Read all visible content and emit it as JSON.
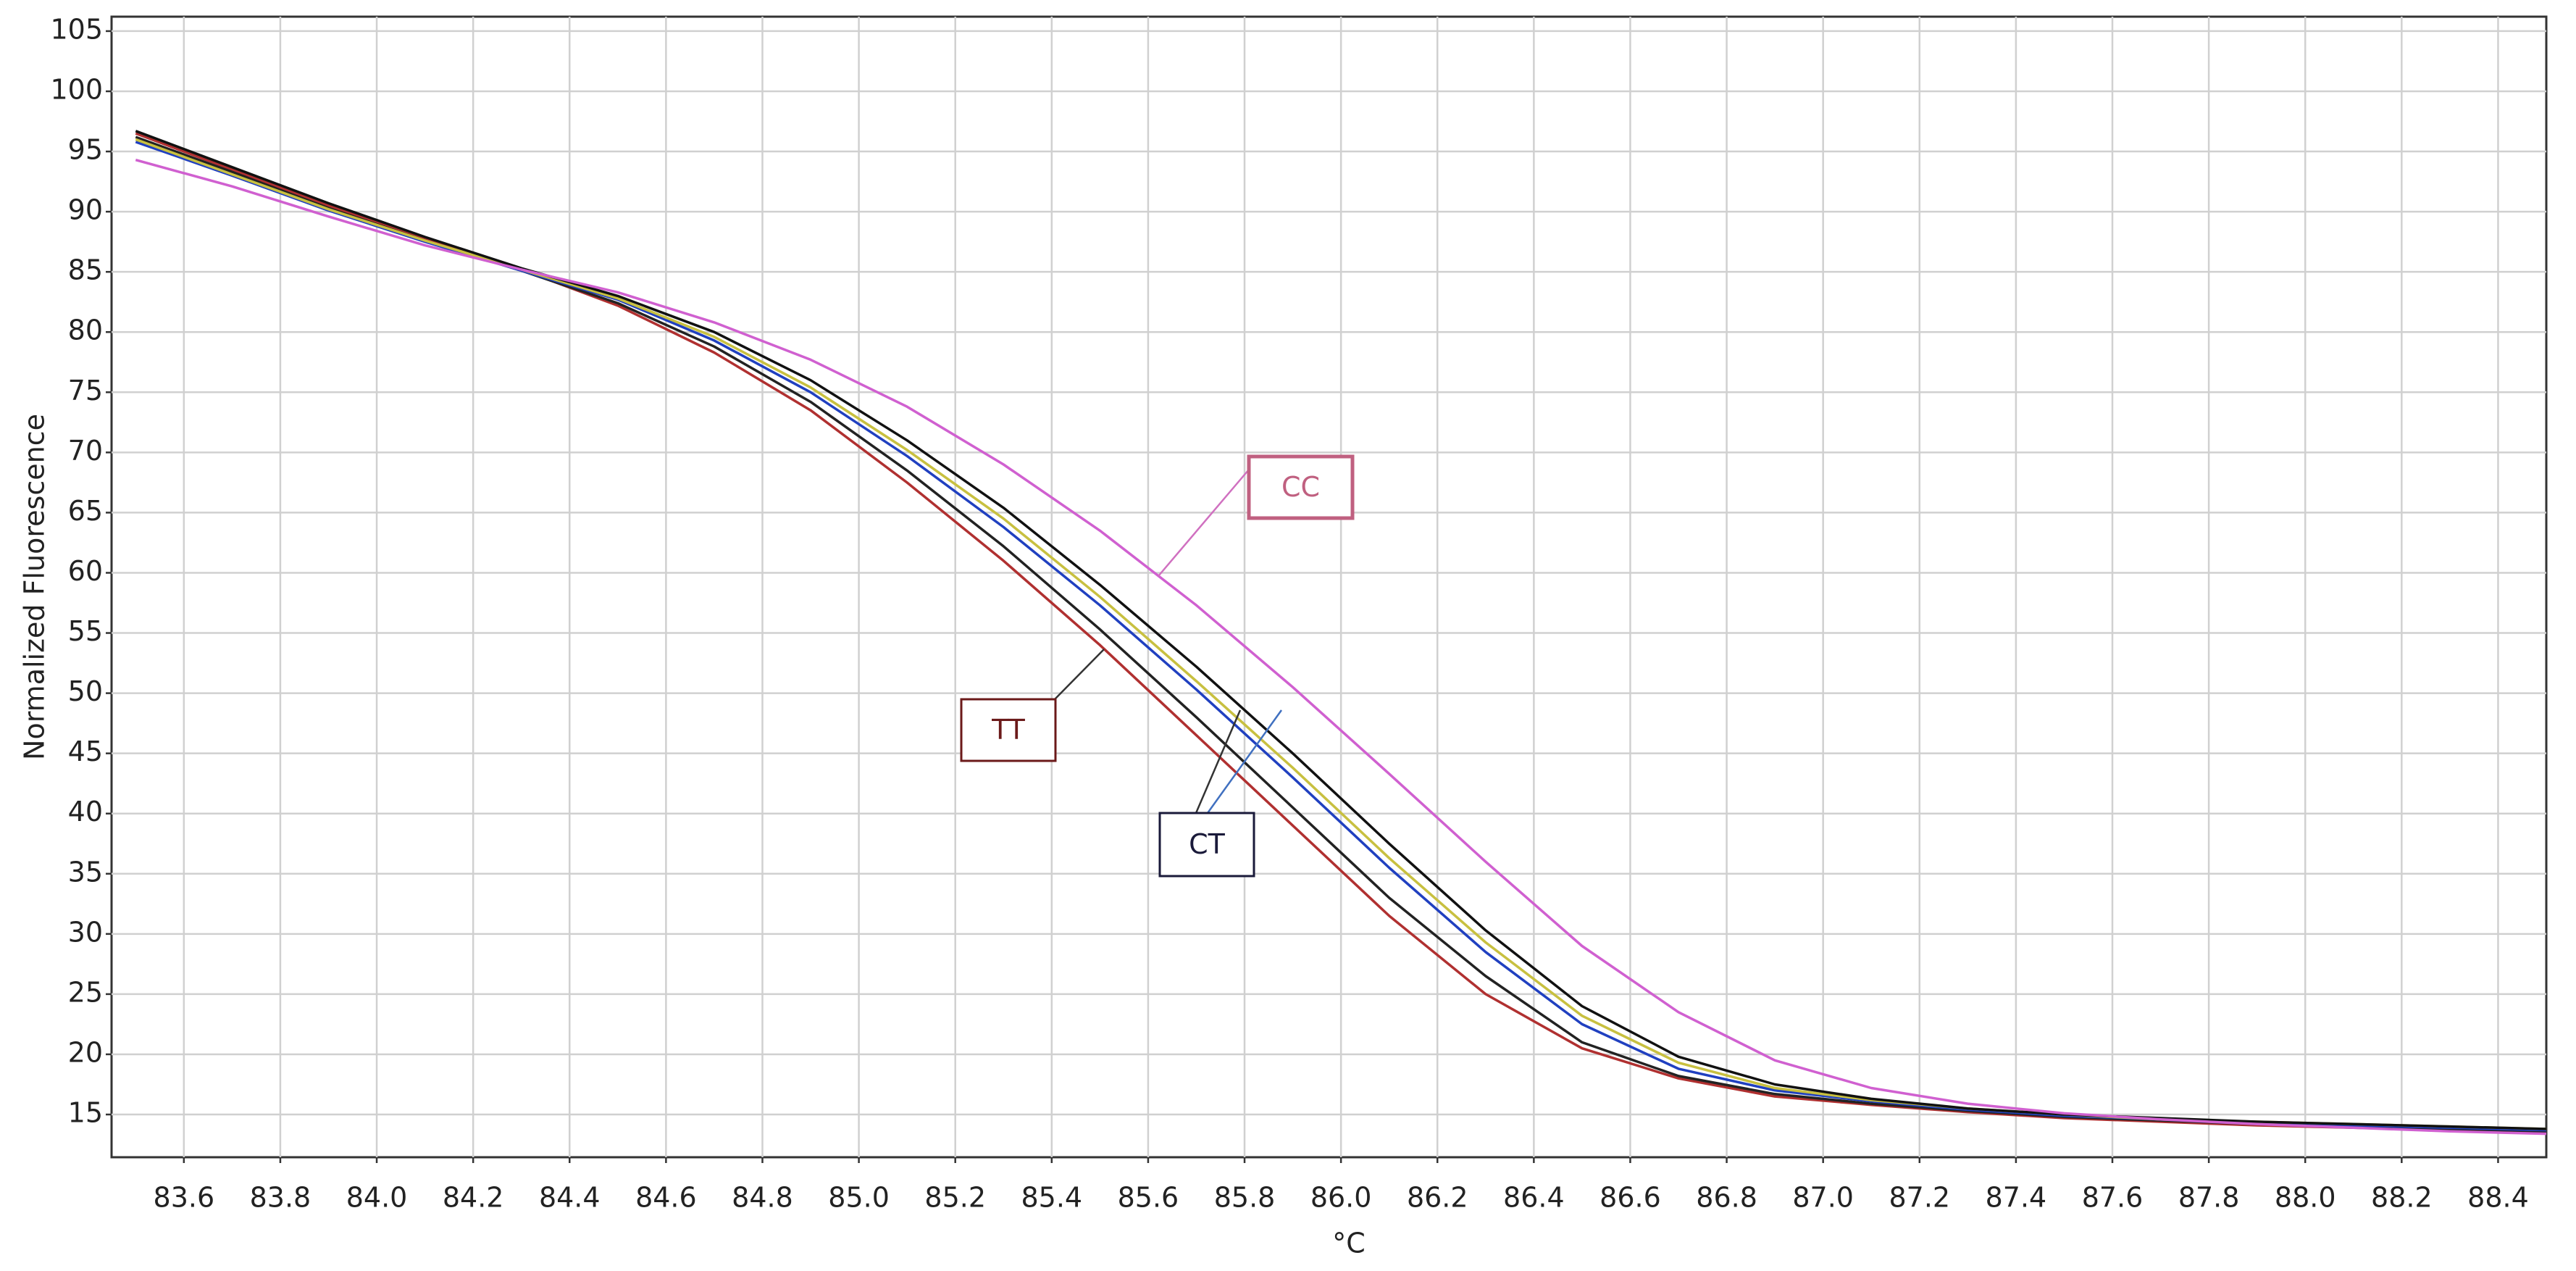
{
  "chart_data": {
    "type": "line",
    "xlabel": "°C",
    "ylabel": "Normalized Fluorescence",
    "x": [
      83.5,
      83.7,
      83.9,
      84.1,
      84.3,
      84.5,
      84.7,
      84.9,
      85.1,
      85.3,
      85.5,
      85.7,
      85.9,
      86.1,
      86.3,
      86.5,
      86.7,
      86.9,
      87.1,
      87.3,
      87.5,
      87.7,
      87.9,
      88.1,
      88.3,
      88.5
    ],
    "series": [
      {
        "color": "#b03030",
        "values": [
          96.5,
          93.5,
          90.5,
          87.7,
          85.2,
          82.2,
          78.3,
          73.5,
          67.5,
          61,
          54,
          46.5,
          39,
          31.5,
          25,
          20.5,
          18,
          16.5,
          15.8,
          15.2,
          14.7,
          14.4,
          14.1,
          13.9,
          13.7,
          13.5
        ]
      },
      {
        "color": "#222222",
        "values": [
          96.2,
          93.3,
          90.3,
          87.6,
          85.1,
          82.4,
          78.8,
          74.2,
          68.5,
          62.2,
          55.3,
          48,
          40.5,
          33,
          26.5,
          21,
          18.2,
          16.7,
          15.9,
          15.3,
          14.8,
          14.5,
          14.2,
          14,
          13.8,
          13.6
        ]
      },
      {
        "color": "#2040c0",
        "values": [
          95.8,
          93,
          90.1,
          87.5,
          85.1,
          82.7,
          79.3,
          75,
          69.7,
          63.8,
          57.3,
          50.3,
          43,
          35.5,
          28.5,
          22.5,
          18.8,
          17,
          16.1,
          15.4,
          14.9,
          14.6,
          14.3,
          14.1,
          13.9,
          13.7
        ]
      },
      {
        "color": "#c8c040",
        "values": [
          96,
          93.1,
          90.2,
          87.6,
          85.2,
          82.8,
          79.6,
          75.4,
          70.2,
          64.5,
          58,
          51,
          43.8,
          36.3,
          29.3,
          23.2,
          19.3,
          17.2,
          16.2,
          15.5,
          15,
          14.6,
          14.4,
          14.2,
          14,
          13.8
        ]
      },
      {
        "color": "#111111",
        "values": [
          96.7,
          93.7,
          90.7,
          87.9,
          85.3,
          83,
          80,
          76,
          71,
          65.4,
          59,
          52.2,
          45,
          37.5,
          30.3,
          24,
          19.8,
          17.5,
          16.3,
          15.5,
          15,
          14.7,
          14.4,
          14.2,
          14,
          13.8
        ]
      },
      {
        "color": "#d060d0",
        "values": [
          94.3,
          92.1,
          89.6,
          87.2,
          85.2,
          83.3,
          80.8,
          77.7,
          73.8,
          69,
          63.5,
          57.3,
          50.5,
          43.3,
          36,
          29,
          23.5,
          19.5,
          17.2,
          15.9,
          15.1,
          14.6,
          14.2,
          13.9,
          13.6,
          13.4
        ]
      }
    ],
    "xlim": [
      83.45,
      88.5
    ],
    "ylim": [
      11.45,
      106.2
    ],
    "xticks": [
      83.6,
      83.8,
      {
        "value": 84,
        "label": "84.0"
      },
      84.2,
      84.4,
      84.6,
      84.8,
      {
        "value": 85,
        "label": "85.0"
      },
      85.2,
      85.4,
      85.6,
      85.8,
      {
        "value": 86,
        "label": "86.0"
      },
      86.2,
      86.4,
      86.6,
      86.8,
      {
        "value": 87,
        "label": "87.0"
      },
      87.2,
      87.4,
      87.6,
      87.8,
      {
        "value": 88,
        "label": "88.0"
      },
      88.2,
      88.4
    ],
    "yticks": [
      15,
      20,
      25,
      30,
      35,
      40,
      45,
      50,
      55,
      60,
      65,
      70,
      75,
      80,
      85,
      90,
      95,
      100,
      105
    ],
    "grid": true,
    "annotations": [
      {
        "text": "CC",
        "color": "#c06080"
      },
      {
        "text": "TT",
        "color": "#6b1a1a"
      },
      {
        "text": "CT",
        "color": "#1a1a3a"
      }
    ]
  }
}
